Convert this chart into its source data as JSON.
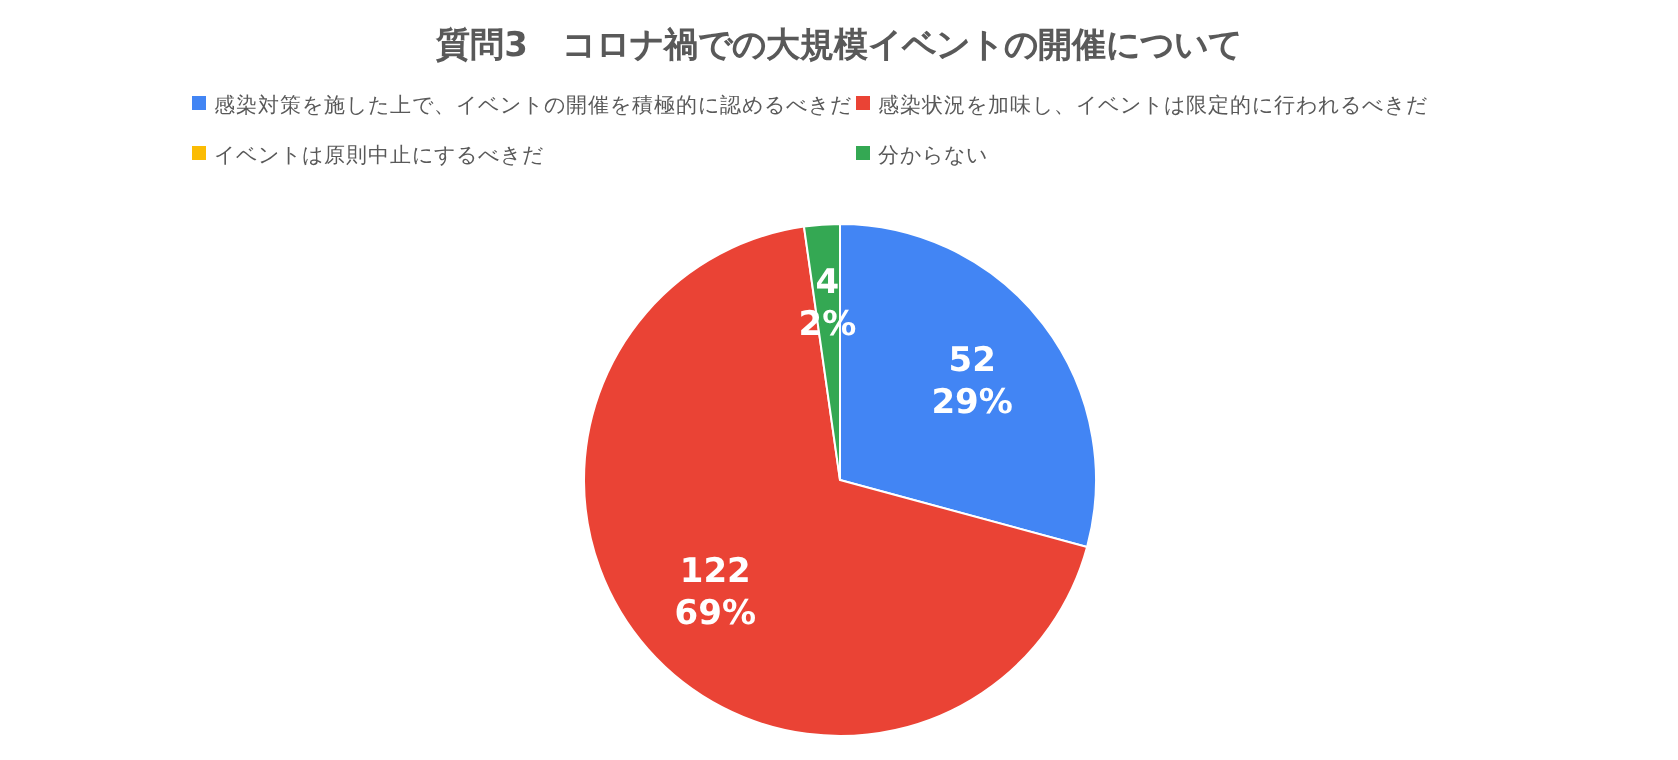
{
  "chart_data": {
    "type": "pie",
    "title": "質問3　コロナ禍での大規模イベントの開催について",
    "categories": [
      "感染対策を施した上で、イベントの開催を積極的に認めるべきだ",
      "感染状況を加味し、イベントは限定的に行われるべきだ",
      "イベントは原則中止にするべきだ",
      "分からない"
    ],
    "values": [
      52,
      122,
      0,
      4
    ],
    "colors": [
      "#4285f4",
      "#ea4335",
      "#fbbc04",
      "#34a853"
    ],
    "value_labels": [
      "52\n29%",
      "122\n69%",
      null,
      "4\n2%"
    ],
    "legend": "top"
  }
}
